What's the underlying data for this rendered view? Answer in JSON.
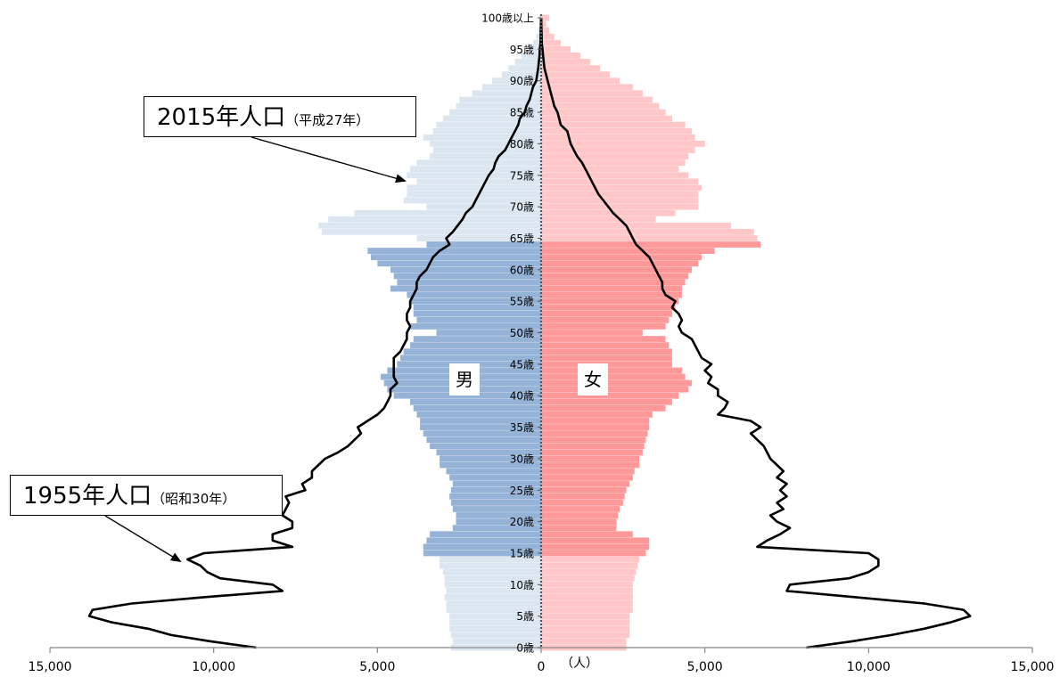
{
  "chart_data": {
    "type": "bar",
    "orientation": "horizontal-pyramid",
    "x_unit_label": "（人）",
    "xlim": [
      -15000,
      15000
    ],
    "x_ticks": [
      {
        "value": -15000,
        "label": "15,000"
      },
      {
        "value": -10000,
        "label": "10,000"
      },
      {
        "value": -5000,
        "label": "5,000"
      },
      {
        "value": 0,
        "label": "0"
      },
      {
        "value": 5000,
        "label": "5,000"
      },
      {
        "value": 10000,
        "label": "10,000"
      },
      {
        "value": 15000,
        "label": "15,000"
      }
    ],
    "age_labels": [
      {
        "age": 0,
        "label": "0歳"
      },
      {
        "age": 5,
        "label": "5歳"
      },
      {
        "age": 10,
        "label": "10歳"
      },
      {
        "age": 15,
        "label": "15歳"
      },
      {
        "age": 20,
        "label": "20歳"
      },
      {
        "age": 25,
        "label": "25歳"
      },
      {
        "age": 30,
        "label": "30歳"
      },
      {
        "age": 35,
        "label": "35歳"
      },
      {
        "age": 40,
        "label": "40歳"
      },
      {
        "age": 45,
        "label": "45歳"
      },
      {
        "age": 50,
        "label": "50歳"
      },
      {
        "age": 55,
        "label": "55歳"
      },
      {
        "age": 60,
        "label": "60歳"
      },
      {
        "age": 65,
        "label": "65歳"
      },
      {
        "age": 70,
        "label": "70歳"
      },
      {
        "age": 75,
        "label": "75歳"
      },
      {
        "age": 80,
        "label": "80歳"
      },
      {
        "age": 85,
        "label": "85歳"
      },
      {
        "age": 90,
        "label": "90歳"
      },
      {
        "age": 95,
        "label": "95歳"
      },
      {
        "age": 100,
        "label": "100歳以上"
      }
    ],
    "sex_labels": {
      "male": "男",
      "female": "女"
    },
    "colors": {
      "male_working": "#95B3D7",
      "male_other": "#DCE6F1",
      "female_working": "#FF9999",
      "female_other": "#FFC7C7",
      "line": "#000000"
    },
    "working_age_range": [
      15,
      64
    ],
    "series_2015": {
      "label": "2015年人口",
      "label_sub": "（平成27年）",
      "male": [
        2750,
        2700,
        2750,
        2800,
        2800,
        2800,
        2900,
        2900,
        2950,
        2900,
        2950,
        2950,
        3000,
        3100,
        3100,
        3600,
        3600,
        3500,
        3400,
        2700,
        2600,
        2600,
        2700,
        2750,
        2800,
        2750,
        2700,
        2800,
        2900,
        3100,
        3100,
        3200,
        3400,
        3500,
        3600,
        3700,
        3700,
        3800,
        3900,
        4000,
        4500,
        4700,
        4800,
        4900,
        4700,
        4400,
        4300,
        4200,
        4000,
        3900,
        3200,
        4000,
        3800,
        3900,
        3900,
        4000,
        4100,
        4600,
        4400,
        4500,
        4600,
        5000,
        5200,
        5300,
        3500,
        3800,
        6700,
        6800,
        6500,
        5700,
        3500,
        4200,
        4100,
        4100,
        3800,
        4100,
        4000,
        3800,
        3400,
        3300,
        3400,
        3600,
        3300,
        3200,
        3000,
        2800,
        2600,
        2500,
        2100,
        1800,
        1500,
        1200,
        1000,
        800,
        600,
        400,
        250,
        150,
        90,
        50,
        60
      ],
      "female": [
        2600,
        2600,
        2700,
        2700,
        2700,
        2700,
        2800,
        2800,
        2800,
        2800,
        2800,
        2850,
        2900,
        2950,
        3000,
        3200,
        3300,
        3300,
        2800,
        2300,
        2300,
        2350,
        2400,
        2500,
        2550,
        2600,
        2700,
        2800,
        2850,
        3000,
        3000,
        3100,
        3150,
        3200,
        3250,
        3300,
        3300,
        3400,
        3800,
        4000,
        4200,
        4500,
        4600,
        4400,
        4300,
        4000,
        4000,
        4000,
        3900,
        3800,
        3100,
        3800,
        3900,
        4000,
        4100,
        4200,
        4300,
        4300,
        4400,
        4500,
        4600,
        4800,
        4900,
        5300,
        6700,
        6600,
        6500,
        5800,
        3500,
        4100,
        4800,
        4800,
        4800,
        4900,
        4800,
        4500,
        4200,
        4400,
        4500,
        4700,
        5000,
        4700,
        4600,
        4400,
        4000,
        3800,
        3600,
        3400,
        3100,
        2800,
        2400,
        2100,
        1800,
        1500,
        1200,
        900,
        600,
        400,
        250,
        150,
        250
      ]
    },
    "series_1955": {
      "label": "1955年人口",
      "label_sub": "（昭和30年）",
      "male": [
        8700,
        10100,
        11300,
        12000,
        13100,
        13800,
        13700,
        12500,
        10300,
        7900,
        8200,
        9800,
        10200,
        10400,
        10800,
        10300,
        7600,
        8200,
        8200,
        7600,
        7600,
        7900,
        7800,
        7700,
        7800,
        7200,
        7300,
        7000,
        7000,
        6800,
        6600,
        6200,
        5900,
        5700,
        5500,
        5600,
        5300,
        5000,
        4800,
        4700,
        4600,
        4600,
        4400,
        4500,
        4500,
        4500,
        4500,
        4300,
        4200,
        4100,
        4100,
        4000,
        4100,
        4100,
        4000,
        4000,
        3900,
        3800,
        3800,
        3700,
        3500,
        3400,
        3300,
        3100,
        2800,
        2900,
        2700,
        2550,
        2400,
        2300,
        2100,
        2000,
        1900,
        1800,
        1700,
        1600,
        1450,
        1400,
        1300,
        1100,
        1000,
        900,
        800,
        700,
        650,
        500,
        450,
        350,
        300,
        250,
        150,
        120,
        90,
        70,
        50,
        40,
        20,
        15,
        10,
        5,
        3
      ],
      "female": [
        8100,
        9500,
        10700,
        11700,
        12500,
        13100,
        12900,
        11700,
        9600,
        7500,
        7600,
        9400,
        10000,
        10300,
        10300,
        10000,
        6600,
        6900,
        7300,
        7600,
        7200,
        7000,
        7400,
        7200,
        7500,
        7300,
        7500,
        7200,
        7400,
        7200,
        7000,
        6900,
        6800,
        6600,
        6400,
        6700,
        6400,
        5400,
        5600,
        5700,
        5400,
        5400,
        5100,
        5200,
        5000,
        5200,
        4900,
        4800,
        4700,
        4600,
        4300,
        4200,
        4300,
        4200,
        4000,
        4100,
        3800,
        3700,
        3700,
        3600,
        3500,
        3400,
        3300,
        3100,
        2900,
        2800,
        2700,
        2600,
        2400,
        2200,
        2050,
        1900,
        1750,
        1650,
        1550,
        1450,
        1350,
        1250,
        1100,
        1000,
        900,
        850,
        800,
        600,
        550,
        500,
        400,
        350,
        300,
        250,
        200,
        150,
        100,
        80,
        60,
        40,
        20,
        15,
        10,
        5,
        3
      ]
    }
  }
}
